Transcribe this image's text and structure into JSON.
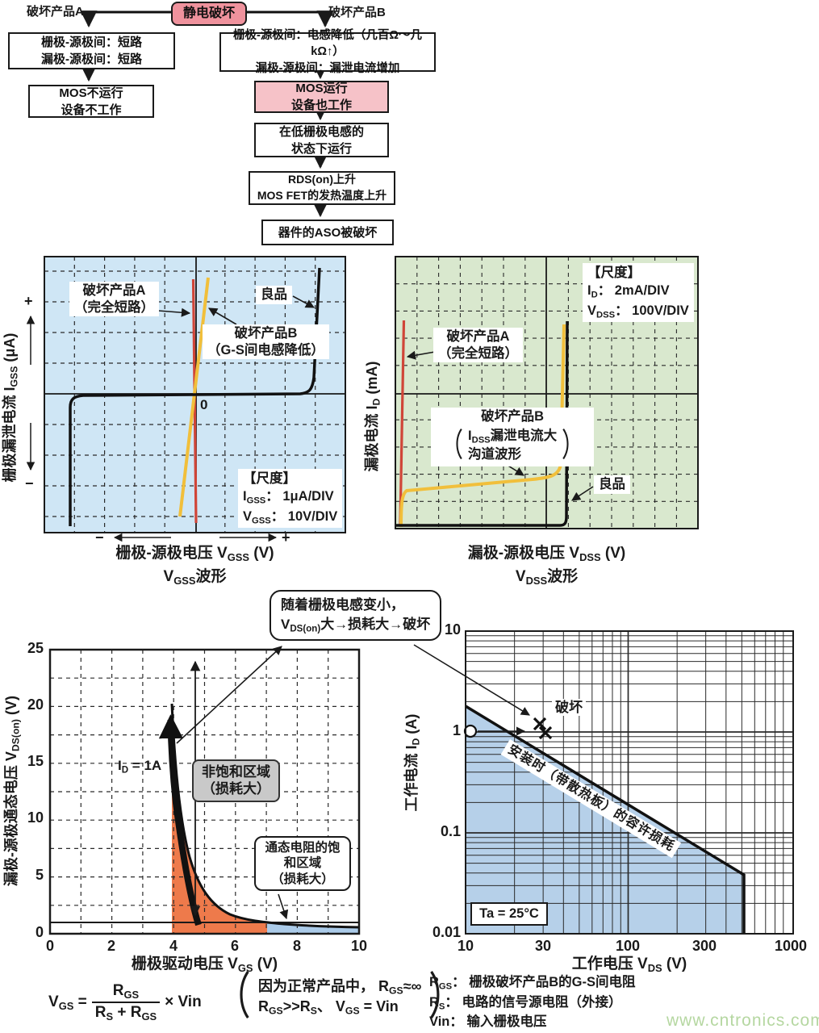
{
  "page": {
    "watermark": "www.cntronics.com"
  },
  "colors": {
    "pink_dark": "#ef929d",
    "pink_light": "#f6c2c8",
    "chart1_bg": "#cfe6f5",
    "chart2_bg": "#d9e8ce",
    "orange": "#ee7a4b",
    "region_blue": "#abcbe9",
    "chart4_blue": "#b6d0e9",
    "gray_box": "#c9c9c9",
    "yellow": "#f1bf3b",
    "red": "#d04538",
    "watermark_green": "#b5d7a1"
  },
  "flowchart": {
    "root": "静电破坏",
    "label_a": "破坏产品A",
    "label_b": "破坏产品B",
    "a1": [
      "栅极-源极间：短路",
      "漏极-源极间：短路"
    ],
    "a2": [
      "MOS不运行",
      "设备不工作"
    ],
    "b1": [
      "栅极-源极间：电感降低（几百Ω～几kΩ↑）",
      "漏极-源极间：漏泄电流增加"
    ],
    "b2": [
      "MOS运行",
      "设备也工作"
    ],
    "b3": [
      "在低栅极电感的",
      "状态下运行"
    ],
    "b4": [
      "RDS(on)上升",
      "MOS FET的发热温度上升"
    ],
    "b5": "器件的ASO被破坏"
  },
  "chart1": {
    "ylabel": {
      "pre": "栅极漏泄电流  I",
      "sub": "GSS",
      "post": "  (μA)"
    },
    "plus": "+",
    "minus": "−",
    "xplus": "+",
    "xminus": "−",
    "xlabel": {
      "pre": "栅极-源极电压  V",
      "sub": "GSS",
      "post": "  (V)"
    },
    "wave": {
      "pre": "V",
      "sub": "GSS",
      "post": "波形"
    },
    "zero": "0",
    "label_a": [
      "破坏产品A",
      "（完全短路）"
    ],
    "label_b": [
      "破坏产品B",
      "（G-S间电感降低）"
    ],
    "label_good": "良品",
    "scale_title": "【尺度】",
    "scale": [
      {
        "pre": "I",
        "sub": "GSS",
        "post": "： 1μA/DIV"
      },
      {
        "pre": "V",
        "sub": "GSS",
        "post": "： 10V/DIV"
      }
    ]
  },
  "chart2": {
    "ylabel": {
      "pre": "漏极电流  I",
      "sub": "D",
      "post": "  (mA)"
    },
    "xlabel": {
      "pre": "漏极-源极电压  V",
      "sub": "DSS",
      "post": "  (V)"
    },
    "wave": {
      "pre": "V",
      "sub": "DSS",
      "post": "波形"
    },
    "label_a": [
      "破坏产品A",
      "（完全短路）"
    ],
    "label_b_title": "破坏产品B",
    "label_b_l1": {
      "pre": "I",
      "sub": "DSS",
      "post": "漏泄电流大"
    },
    "label_b_l2": "沟道波形",
    "label_good": "良品",
    "scale_title": "【尺度】",
    "scale": [
      {
        "pre": "I",
        "sub": "D",
        "post": "： 2mA/DIV"
      },
      {
        "pre": "V",
        "sub": "DSS",
        "post": "： 100V/DIV"
      }
    ]
  },
  "chart3": {
    "ylabel": {
      "pre": "漏极-源极通态电压  V",
      "sub": "DS(on)",
      "post": "  (V)"
    },
    "xlabel": {
      "pre": "栅极驱动电压  V",
      "sub": "GS",
      "post": "  (V)"
    },
    "y_ticks": [
      "25",
      "20",
      "15",
      "10",
      "5",
      "0"
    ],
    "x_ticks": [
      "0",
      "2",
      "4",
      "6",
      "8",
      "10"
    ],
    "id_label": {
      "pre": "I",
      "sub": "D",
      "post": " = 1A"
    },
    "region_unsat": [
      "非饱和区域",
      "（损耗大）"
    ],
    "region_sat": [
      "通态电阻的饱",
      "和区域",
      "（损耗大）"
    ]
  },
  "chart4": {
    "ylabel": {
      "pre": "工作电流  I",
      "sub": "D",
      "post": "  (A)"
    },
    "xlabel": {
      "pre": "工作电压  V",
      "sub": "DS",
      "post": "  (V)"
    },
    "y_ticks": [
      "10",
      "1",
      "0.1",
      "0.01"
    ],
    "x_ticks": [
      "10",
      "30",
      "100",
      "300",
      "1000"
    ],
    "destroy": "破坏",
    "allow": "安装时（带散热板）的容许损耗",
    "ta": "Ta = 25°C"
  },
  "annotation": {
    "l1": "随着栅极电感变小，",
    "l2": {
      "pre": "V",
      "sub": "DS(on)",
      "post": "大→损耗大→破坏"
    }
  },
  "formula": {
    "lhs": {
      "pre": "V",
      "sub": "GS",
      "post": " ="
    },
    "num": {
      "pre": "R",
      "sub": "GS"
    },
    "den": {
      "a": "R",
      "as": "S",
      "b": " + R",
      "bs": "GS"
    },
    "times": "× Vin",
    "big_open": "（",
    "big_close": "）",
    "p1": {
      "pre": "因为正常产品中， R",
      "sub": "GS",
      "post": "≈∞"
    },
    "p2": {
      "a": "R",
      "as": "GS",
      "b": ">>R",
      "bs": "S",
      "c": "、 V",
      "cs": "GS",
      "d": " = Vin"
    }
  },
  "legend": {
    "r1": {
      "pre": "R",
      "sub": "GS",
      "post": "： 栅极破坏产品B的G-S间电阻"
    },
    "r2": {
      "pre": "R",
      "sub": "S",
      "post": "： 电路的信号源电阻（外接）"
    },
    "r3": "Vin： 输入栅极电压"
  },
  "chart_data": [
    {
      "id": "vgss-waveform",
      "type": "line",
      "title": "VGSS波形",
      "xlabel": "栅极-源极电压 VGSS (V)",
      "ylabel": "栅极漏泄电流 IGSS (μA)",
      "scale_per_div": {
        "IGSS": "1μA/DIV",
        "VGSS": "10V/DIV"
      },
      "series": [
        {
          "name": "破坏产品A（完全短路）",
          "color": "red",
          "shape": "near-vertical resistive line through 0 V (complete short)"
        },
        {
          "name": "破坏产品B（G-S间电感降低）",
          "color": "yellow",
          "shape": "steep line through 0 V, slope = few hundred Ω to few kΩ"
        },
        {
          "name": "良品",
          "color": "black",
          "shape": "flat zero leakage with sharp breakdown rise near ±40–50 V"
        }
      ]
    },
    {
      "id": "vdss-waveform",
      "type": "line",
      "title": "VDSS波形",
      "xlabel": "漏极-源极电压 VDSS (V)",
      "ylabel": "漏极电流 ID (mA)",
      "scale_per_div": {
        "ID": "2mA/DIV",
        "VDSS": "100V/DIV"
      },
      "series": [
        {
          "name": "破坏产品A（完全短路）",
          "color": "red",
          "shape": "near-vertical line at 0 V (complete short)"
        },
        {
          "name": "破坏产品B（IDSS漏泄电流大 沟道波形）",
          "color": "yellow",
          "shape": "large IDSS leakage slope, then breakdown near +500 V"
        },
        {
          "name": "良品",
          "color": "black",
          "shape": "zero leakage flat line, vertical breakdown near +500 V"
        }
      ]
    },
    {
      "id": "vdson-vs-vgs",
      "type": "line",
      "condition": "ID = 1A",
      "xlabel": "栅极驱动电压 VGS (V)",
      "ylabel": "漏极-源极通态电压 VDS(on) (V)",
      "xlim": [
        0,
        10
      ],
      "ylim": [
        0,
        25
      ],
      "x": [
        4,
        4.5,
        5,
        5.5,
        6,
        6.5,
        7,
        8,
        9,
        10
      ],
      "y": [
        20,
        10,
        5.5,
        3.5,
        2.3,
        1.6,
        1.2,
        0.85,
        0.7,
        0.6
      ],
      "regions": [
        {
          "label": "非饱和区域（损耗大）",
          "x_range": [
            3.9,
            7
          ],
          "color": "orange"
        },
        {
          "label": "通态电阻的饱和区域（损耗大）",
          "x_range": [
            7,
            10
          ],
          "color": "blue"
        }
      ]
    },
    {
      "id": "aso-allowable-loss",
      "type": "line",
      "log_x": true,
      "log_y": true,
      "condition": "Ta = 25°C",
      "xlabel": "工作电压 VDS (V)",
      "ylabel": "工作电流 ID (A)",
      "xlim": [
        10,
        1000
      ],
      "ylim": [
        0.01,
        10
      ],
      "boundary_label": "安装时（带散热板）的容许损耗",
      "boundary": [
        [
          10,
          1.8
        ],
        [
          500,
          0.04
        ],
        [
          500,
          0.01
        ]
      ],
      "operating_point": [
        10,
        1
      ],
      "failure_points": [
        [
          28,
          1.1
        ],
        [
          30,
          0.95
        ]
      ],
      "failure_label": "破坏"
    }
  ]
}
